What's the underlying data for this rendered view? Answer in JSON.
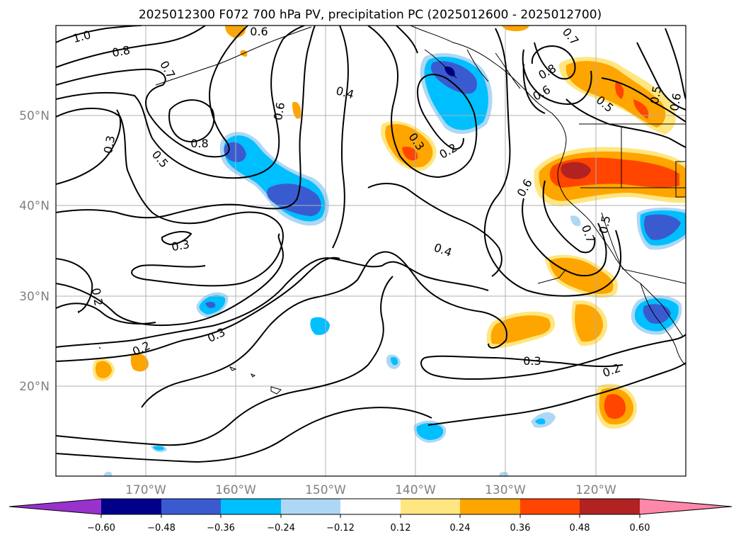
{
  "title": "2025012300 F072 700 hPa PV, precipitation PC (2025012600 - 2025012700)",
  "map": {
    "lon_range": [
      -180,
      -110
    ],
    "lat_range": [
      10,
      60
    ],
    "lat_ticks": [
      "50°N",
      "40°N",
      "30°N",
      "20°N"
    ],
    "lon_ticks": [
      "170°W",
      "160°W",
      "150°W",
      "140°W",
      "130°W",
      "120°W"
    ],
    "grid": true
  },
  "contour_labels": [
    "1.0",
    "0.8",
    "0.7",
    "0.6",
    "0.8",
    "0.3",
    "0.5",
    "0.4",
    "0.6",
    "0.3",
    "0.2",
    "0.8",
    "0.6",
    "0.7",
    "0.5",
    "0.5",
    "0.6",
    "0.6",
    "0.7",
    "0.5",
    "0.3",
    "0.4",
    "0.2",
    "0.3",
    "0.2",
    "0.3",
    "0.2"
  ],
  "colorbar": {
    "ticks": [
      "−0.60",
      "−0.48",
      "−0.36",
      "−0.24",
      "−0.12",
      "0.12",
      "0.24",
      "0.36",
      "0.48",
      "0.60"
    ],
    "colors": [
      "#9932cc",
      "#00008b",
      "#3a5bd0",
      "#00bfff",
      "#add8f5",
      "#ffffff",
      "#ffe680",
      "#ffa500",
      "#ff4500",
      "#b22222",
      "#ff88aa"
    ]
  },
  "shading_colors": {
    "neg_strong": "#00008b",
    "neg_mid": "#3a5bd0",
    "neg": "#00bfff",
    "neg_light": "#add8f5",
    "pos_light": "#ffe680",
    "pos": "#ffa500",
    "pos_mid": "#ff4500",
    "pos_strong": "#b22222"
  }
}
